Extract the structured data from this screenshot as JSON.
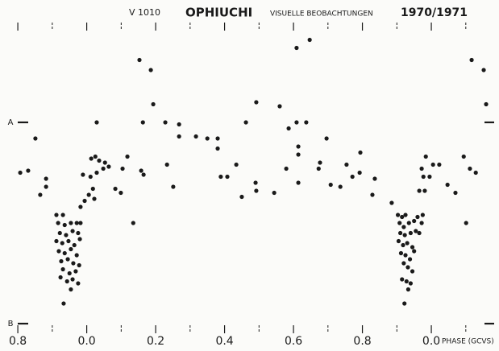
{
  "chart_data": {
    "type": "scatter",
    "title_parts": [
      "V 1010",
      "OPHIUCHI",
      "VISUELLE BEOBACHTUNGEN",
      "1970/1971"
    ],
    "xlabel": "PHASE (GCVS)",
    "color": "#1a1a1a",
    "xlim": [
      0.76,
      2.18
    ],
    "ylim": [
      -0.45,
      1.07
    ],
    "xticks": [
      {
        "value": 0.8,
        "label": "0.8"
      },
      {
        "value": 1.0,
        "label": "0.0"
      },
      {
        "value": 1.2,
        "label": "0.2"
      },
      {
        "value": 1.4,
        "label": "0.4"
      },
      {
        "value": 1.6,
        "label": "0.6"
      },
      {
        "value": 1.8,
        "label": "0.8"
      },
      {
        "value": 2.0,
        "label": "0.0"
      }
    ],
    "xminorticks": [
      0.9,
      1.1,
      1.3,
      1.5,
      1.7,
      1.9,
      2.1
    ],
    "yticks": [
      {
        "value": 0,
        "label": "A"
      },
      {
        "value": 1,
        "label": "B"
      }
    ],
    "x": [
      0.807,
      0.83,
      0.851,
      0.865,
      0.882,
      0.882,
      0.912,
      0.931,
      0.917,
      0.936,
      0.954,
      0.971,
      0.982,
      0.922,
      0.94,
      0.959,
      0.975,
      0.912,
      0.929,
      0.947,
      0.964,
      0.98,
      0.919,
      0.936,
      0.954,
      0.971,
      0.926,
      0.945,
      0.961,
      0.978,
      0.931,
      0.95,
      0.968,
      0.924,
      0.943,
      0.959,
      0.975,
      0.954,
      0.933,
      0.982,
      0.994,
      1.006,
      1.022,
      1.018,
      0.989,
      1.011,
      1.029,
      1.013,
      1.025,
      1.036,
      1.048,
      1.053,
      1.064,
      1.029,
      1.083,
      1.099,
      1.104,
      1.118,
      1.135,
      1.153,
      1.158,
      1.165,
      1.163,
      1.186,
      1.193,
      1.228,
      1.233,
      1.251,
      1.268,
      1.268,
      1.317,
      1.35,
      1.38,
      1.38,
      1.389,
      1.408,
      1.434,
      1.45,
      1.462,
      1.49,
      1.492,
      1.492,
      1.544,
      1.56,
      1.579,
      1.586,
      1.609,
      1.609,
      1.614,
      1.614,
      1.614,
      1.637,
      1.647,
      1.673,
      1.677,
      1.696,
      1.708,
      1.736,
      1.754,
      1.771,
      1.792,
      1.794,
      1.829,
      1.836,
      1.903,
      1.915,
      1.925,
      1.908,
      1.92,
      1.935,
      1.95,
      1.96,
      1.91,
      1.923,
      1.94,
      1.955,
      1.905,
      1.918,
      1.93,
      1.945,
      1.912,
      1.925,
      1.938,
      1.95,
      1.92,
      1.932,
      1.945,
      1.915,
      1.928,
      1.94,
      1.933,
      1.922,
      1.965,
      1.972,
      1.975,
      1.885,
      1.965,
      1.977,
      1.981,
      1.972,
      1.984,
      1.995,
      2.005,
      2.023,
      2.047,
      2.07,
      2.094,
      2.101,
      2.117,
      2.129,
      2.152,
      2.159,
      2.112
    ],
    "values": [
      0.25,
      0.24,
      0.08,
      0.36,
      0.28,
      0.32,
      0.46,
      0.46,
      0.5,
      0.51,
      0.5,
      0.5,
      0.5,
      0.55,
      0.56,
      0.54,
      0.55,
      0.59,
      0.6,
      0.59,
      0.61,
      0.58,
      0.64,
      0.65,
      0.63,
      0.66,
      0.69,
      0.68,
      0.7,
      0.71,
      0.73,
      0.75,
      0.74,
      0.77,
      0.79,
      0.78,
      0.8,
      0.83,
      0.9,
      0.42,
      0.39,
      0.36,
      0.38,
      0.33,
      0.26,
      0.27,
      0.25,
      0.18,
      0.17,
      0.19,
      0.23,
      0.2,
      0.22,
      0.0,
      0.33,
      0.35,
      0.23,
      0.17,
      0.5,
      -0.31,
      0.24,
      0.26,
      0.0,
      -0.26,
      -0.09,
      0.0,
      0.21,
      0.32,
      0.01,
      0.07,
      0.07,
      0.08,
      0.08,
      0.13,
      0.27,
      0.27,
      0.21,
      0.37,
      0.0,
      0.3,
      0.34,
      -0.1,
      0.35,
      -0.08,
      0.23,
      0.03,
      -0.37,
      0.0,
      0.12,
      0.16,
      0.3,
      0.0,
      -0.41,
      0.23,
      0.2,
      0.08,
      0.31,
      0.32,
      0.21,
      0.27,
      0.25,
      0.15,
      0.36,
      0.28,
      0.46,
      0.47,
      0.46,
      0.5,
      0.52,
      0.5,
      0.49,
      0.47,
      0.55,
      0.56,
      0.55,
      0.54,
      0.59,
      0.61,
      0.6,
      0.62,
      0.65,
      0.66,
      0.68,
      0.64,
      0.7,
      0.72,
      0.74,
      0.78,
      0.79,
      0.8,
      0.83,
      0.9,
      0.55,
      0.5,
      0.46,
      0.4,
      0.34,
      0.27,
      0.34,
      0.23,
      0.17,
      0.27,
      0.21,
      0.21,
      0.31,
      0.35,
      0.17,
      0.5,
      -0.31,
      0.25,
      -0.26,
      -0.09,
      0.23
    ]
  }
}
